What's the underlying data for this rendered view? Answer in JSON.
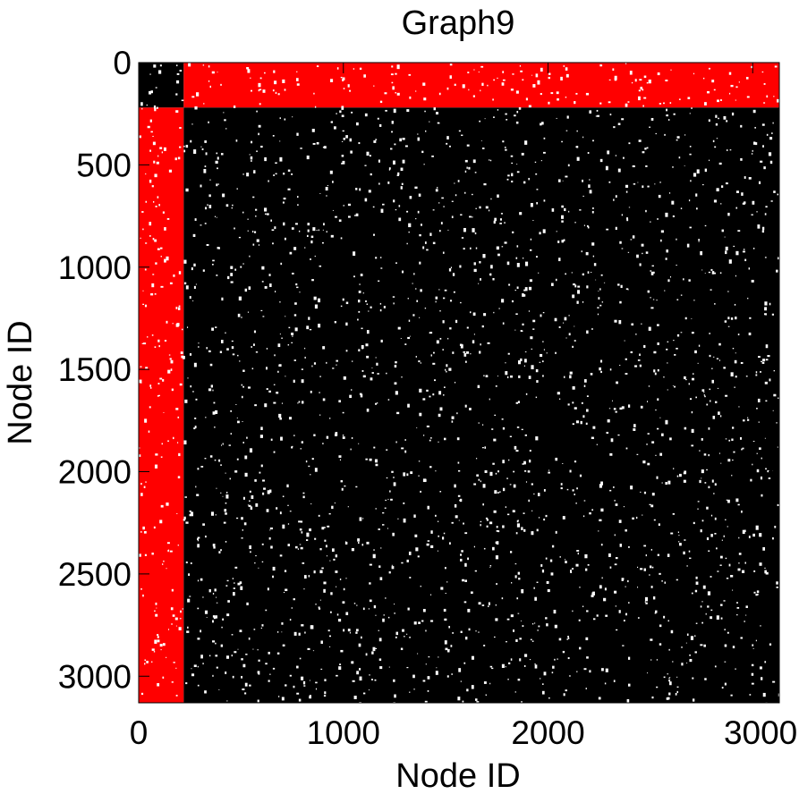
{
  "chart_data": {
    "type": "scatter",
    "title": "Graph9",
    "xlabel": "Node ID",
    "ylabel": "Node ID",
    "xlim": [
      0,
      3130
    ],
    "ylim": [
      0,
      3130
    ],
    "y_inverted": true,
    "x_ticks": [
      "0",
      "1000",
      "2000",
      "3000"
    ],
    "y_ticks": [
      "0",
      "500",
      "1000",
      "1500",
      "2000",
      "2500",
      "3000"
    ],
    "x_tick_values": [
      0,
      1000,
      2000,
      3000
    ],
    "y_tick_values": [
      0,
      500,
      1000,
      1500,
      2000,
      2500,
      3000
    ],
    "community_boundary": 220,
    "colors": {
      "within_block": "#000000",
      "cross_block": "#ff0000",
      "background": "#ffffff"
    },
    "description_of_pattern": "adjacency matrix: dense black block 0-220, red off-diagonal bands 0-220 x 220-3130, dense black block 220-3130"
  }
}
